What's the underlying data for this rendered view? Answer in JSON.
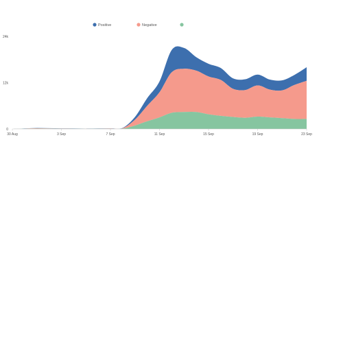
{
  "chart_data": {
    "type": "area",
    "stacked": true,
    "x": [
      "30 Aug",
      "31 Aug",
      "1 Sep",
      "2 Sep",
      "3 Sep",
      "4 Sep",
      "5 Sep",
      "6 Sep",
      "7 Sep",
      "8 Sep",
      "9 Sep",
      "10 Sep",
      "11 Sep",
      "12 Sep",
      "13 Sep",
      "14 Sep",
      "15 Sep",
      "16 Sep",
      "17 Sep",
      "18 Sep",
      "19 Sep",
      "20 Sep",
      "21 Sep",
      "22 Sep",
      "23 Sep"
    ],
    "x_ticks": [
      "30 Aug",
      "3 Sep",
      "7 Sep",
      "11 Sep",
      "15 Sep",
      "19 Sep",
      "23 Sep"
    ],
    "y_ticks": [
      {
        "value": 0,
        "label": "0"
      },
      {
        "value": 12000,
        "label": "12k"
      },
      {
        "value": 24000,
        "label": "24k"
      }
    ],
    "ylim": [
      0,
      24000
    ],
    "series": [
      {
        "name": "",
        "color": "#86c5a0",
        "values": [
          0,
          40,
          80,
          60,
          50,
          40,
          30,
          40,
          50,
          80,
          900,
          2000,
          3000,
          4200,
          4400,
          4400,
          3800,
          3400,
          3100,
          2900,
          3200,
          3000,
          2800,
          2600,
          2600
        ]
      },
      {
        "name": "Negative",
        "color": "#f59a8c",
        "values": [
          0,
          60,
          100,
          80,
          70,
          60,
          40,
          60,
          80,
          120,
          1500,
          4000,
          6500,
          10500,
          11200,
          10700,
          9800,
          9300,
          7300,
          7200,
          8100,
          7200,
          7200,
          8800,
          9900
        ]
      },
      {
        "name": "Positive",
        "color": "#3d6fae",
        "values": [
          0,
          40,
          60,
          50,
          40,
          40,
          30,
          40,
          50,
          80,
          700,
          2000,
          2800,
          5800,
          5400,
          3500,
          3300,
          3100,
          2700,
          2800,
          2800,
          2600,
          2600,
          2600,
          3500
        ]
      }
    ],
    "legend": {
      "position": "top-center",
      "items": [
        {
          "label": "Positive",
          "color": "#3d6fae"
        },
        {
          "label": "Negative",
          "color": "#f59a8c"
        },
        {
          "label": "",
          "color": "#86c5a0"
        }
      ]
    },
    "grid": false
  }
}
